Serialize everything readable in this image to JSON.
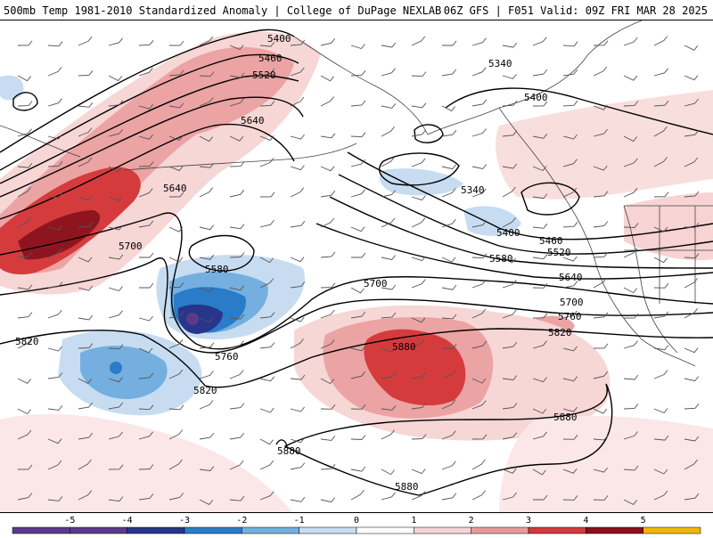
{
  "header": {
    "left": "500mb Temp 1981-2010 Standardized Anomaly | College of DuPage NEXLAB",
    "right": "06Z GFS | F051 Valid: 09Z FRI MAR 28 2025"
  },
  "map": {
    "contour_labels": [
      {
        "id": "c5400a",
        "text": "5400"
      },
      {
        "id": "c5460a",
        "text": "5460"
      },
      {
        "id": "c5520a",
        "text": "5520"
      },
      {
        "id": "c5640a",
        "text": "5640"
      },
      {
        "id": "c5640b",
        "text": "5640"
      },
      {
        "id": "c5700a",
        "text": "5700"
      },
      {
        "id": "c5580a",
        "text": "5580"
      },
      {
        "id": "c5820a",
        "text": "5820"
      },
      {
        "id": "c5760a",
        "text": "5760"
      },
      {
        "id": "c5820b",
        "text": "5820"
      },
      {
        "id": "c5700b",
        "text": "5700"
      },
      {
        "id": "c5880a",
        "text": "5880"
      },
      {
        "id": "c5880b",
        "text": "5880"
      },
      {
        "id": "c5880c",
        "text": "5880"
      },
      {
        "id": "c5880d",
        "text": "5880"
      },
      {
        "id": "c5340a",
        "text": "5340"
      },
      {
        "id": "c5400b",
        "text": "5400"
      },
      {
        "id": "c5340b",
        "text": "5340"
      },
      {
        "id": "c5400c",
        "text": "5400"
      },
      {
        "id": "c5460b",
        "text": "5460"
      },
      {
        "id": "c5520b",
        "text": "5520"
      },
      {
        "id": "c5580b",
        "text": "5580"
      },
      {
        "id": "c5640c",
        "text": "5640"
      },
      {
        "id": "c5700c",
        "text": "5700"
      },
      {
        "id": "c5760b",
        "text": "5760"
      },
      {
        "id": "c5820c",
        "text": "5820"
      }
    ]
  },
  "colorbar": {
    "ticks": [
      "-5",
      "-4",
      "-3",
      "-2",
      "-1",
      "0",
      "1",
      "2",
      "3",
      "4",
      "5"
    ],
    "colors": [
      "#5b3a8c",
      "#27358a",
      "#2a7cc8",
      "#74afe0",
      "#c7dcf1",
      "#ffffff",
      "#f6d3d3",
      "#e89a9a",
      "#d4393c",
      "#8b0e1a",
      "#f2b705"
    ]
  }
}
